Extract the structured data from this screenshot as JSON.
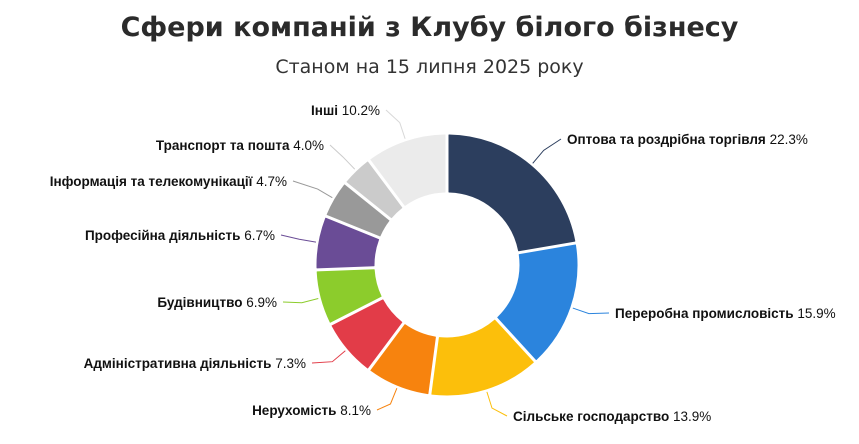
{
  "header": {
    "title": "Сфери компаній з Клубу білого бізнесу",
    "subtitle": "Станом на 15 липня 2025 року"
  },
  "chart_data": {
    "type": "pie",
    "variant": "donut",
    "title": "Сфери компаній з Клубу білого бізнесу",
    "subtitle": "Станом на 15 липня 2025 року",
    "slices": [
      {
        "label": "Оптова та роздрібна торгівля",
        "value": 22.3,
        "value_label": "22.3%",
        "color": "#2c3e5e"
      },
      {
        "label": "Переробна промисловість",
        "value": 15.9,
        "value_label": "15.9%",
        "color": "#2b84dd"
      },
      {
        "label": "Сільське господарство",
        "value": 13.9,
        "value_label": "13.9%",
        "color": "#fcbf0b"
      },
      {
        "label": "Нерухомість",
        "value": 8.1,
        "value_label": "8.1%",
        "color": "#f7830e"
      },
      {
        "label": "Адміністративна діяльність",
        "value": 7.3,
        "value_label": "7.3%",
        "color": "#e23c48"
      },
      {
        "label": "Будівництво",
        "value": 6.9,
        "value_label": "6.9%",
        "color": "#8ccc2c"
      },
      {
        "label": "Професійна діяльність",
        "value": 6.7,
        "value_label": "6.7%",
        "color": "#6a4c96"
      },
      {
        "label": "Інформація та телекомунікації",
        "value": 4.7,
        "value_label": "4.7%",
        "color": "#999999"
      },
      {
        "label": "Транспорт та пошта",
        "value": 4.0,
        "value_label": "4.0%",
        "color": "#cbcbcb"
      },
      {
        "label": "Інші",
        "value": 10.2,
        "value_label": "10.2%",
        "color": "#ebebeb"
      }
    ]
  }
}
